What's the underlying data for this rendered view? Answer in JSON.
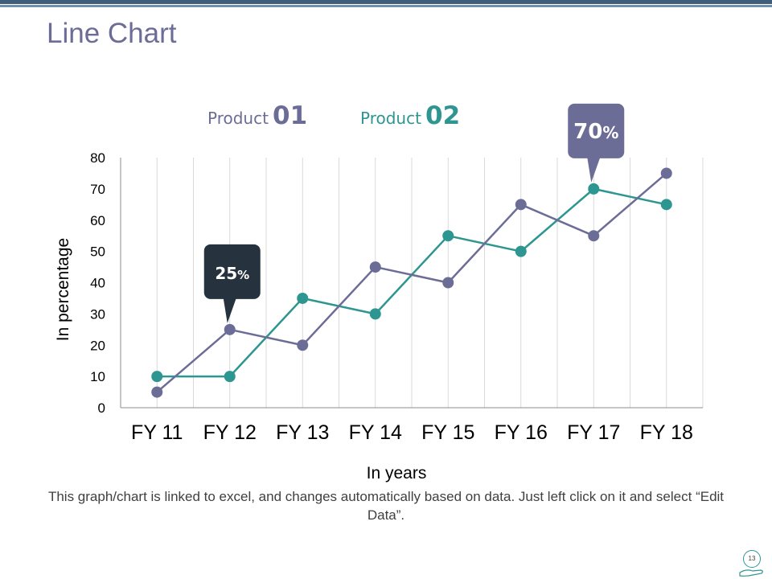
{
  "slide": {
    "title": "Line Chart",
    "footnote": "This graph/chart is linked to excel, and changes automatically based on data. Just left click on it and select “Edit Data”.",
    "page_number": "13"
  },
  "legend": [
    {
      "label": "Product",
      "number": "01"
    },
    {
      "label": "Product",
      "number": "02"
    }
  ],
  "colors": {
    "product1": "#6c6d96",
    "product2": "#2e9691",
    "title": "#6c6d96",
    "callout_dark": "#26333f",
    "callout_purple": "#6c6d96",
    "grid": "#d9d9d9",
    "axis": "#8c8c8c"
  },
  "chart_data": {
    "type": "line",
    "categories": [
      "FY 11",
      "FY 12",
      "FY 13",
      "FY 14",
      "FY 15",
      "FY 16",
      "FY 17",
      "FY 18"
    ],
    "series": [
      {
        "name": "Product 01",
        "values": [
          5,
          25,
          20,
          45,
          40,
          65,
          55,
          75
        ]
      },
      {
        "name": "Product 02",
        "values": [
          10,
          10,
          35,
          30,
          55,
          50,
          70,
          65
        ]
      }
    ],
    "yticks": [
      0,
      10,
      20,
      30,
      40,
      50,
      60,
      70,
      80
    ],
    "ylim": [
      0,
      80
    ],
    "xlabel": "In years",
    "ylabel": "In percentage",
    "annotations": [
      {
        "text": "25",
        "suffix": "%",
        "series": 0,
        "index": 1,
        "style": "dark"
      },
      {
        "text": "70",
        "suffix": "%",
        "series": 1,
        "index": 6,
        "style": "purple"
      }
    ]
  }
}
